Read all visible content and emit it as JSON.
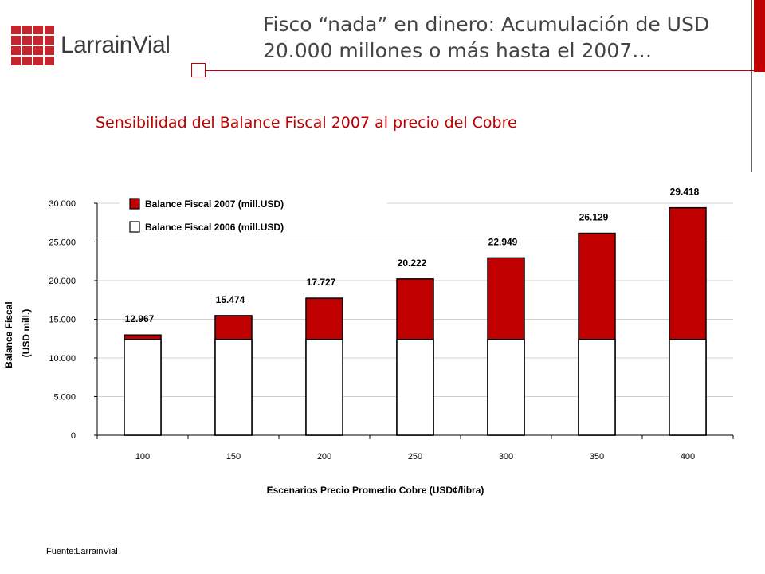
{
  "header": {
    "logo_text": "LarrainVial",
    "title": "Fisco “nada” en dinero: Acumulación de USD 20.000 millones o más hasta el 2007…",
    "brand_color": "#c00000"
  },
  "subtitle": "Sensibilidad del Balance Fiscal 2007 al precio del Cobre",
  "chart_data": {
    "type": "bar",
    "stacked": false,
    "categories": [
      "100",
      "150",
      "200",
      "250",
      "300",
      "350",
      "400"
    ],
    "series": [
      {
        "name": "Balance Fiscal 2007 (mill.USD)",
        "color": "#c00000",
        "values": [
          12967,
          15474,
          17727,
          20222,
          22949,
          26129,
          29418
        ],
        "value_labels": [
          "12.967",
          "15.474",
          "17.727",
          "20.222",
          "22.949",
          "26.129",
          "29.418"
        ]
      },
      {
        "name": "Balance Fiscal 2006 (mill.USD)",
        "color": "#ffffff",
        "values": [
          12400,
          12400,
          12400,
          12400,
          12400,
          12400,
          12400
        ]
      }
    ],
    "xlabel": "Escenarios Precio Promedio Cobre (USD¢/libra)",
    "ylabel": "Balance Fiscal (USD mill.)",
    "ylabel_lines": [
      "Balance Fiscal",
      "(USD mill.)"
    ],
    "ylim": [
      0,
      30000
    ],
    "yticks": [
      0,
      5000,
      10000,
      15000,
      20000,
      25000,
      30000
    ],
    "ytick_labels": [
      "0",
      "5.000",
      "10.000",
      "15.000",
      "20.000",
      "25.000",
      "30.000"
    ],
    "grid": true,
    "legend_position": "top-left"
  },
  "source": "Fuente:LarrainVial"
}
